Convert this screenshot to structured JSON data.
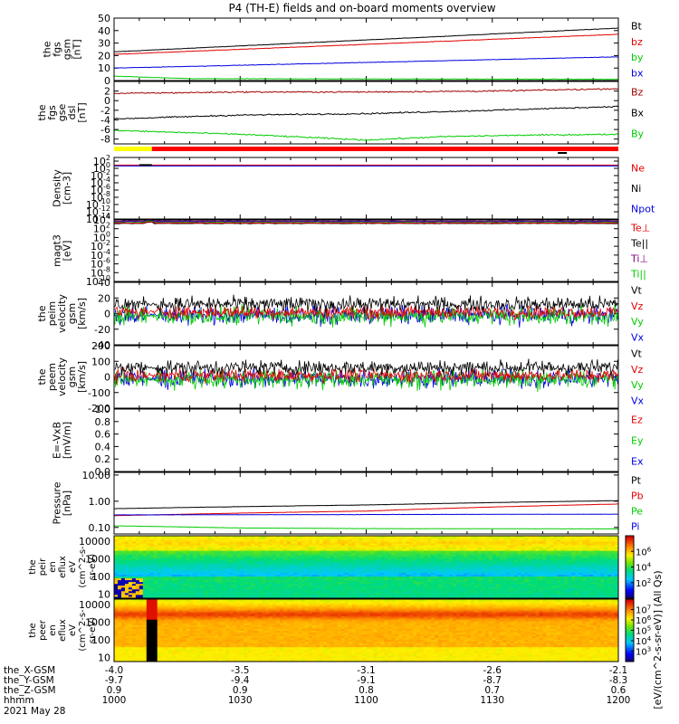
{
  "title": "P4 (TH-E) fields and on-board moments overview",
  "colors": {
    "black": "#000000",
    "red": "#e00000",
    "green": "#00cc00",
    "blue": "#0000e0",
    "darkred": "#a00000",
    "purple": "#800080"
  },
  "chart_data": [
    {
      "type": "line",
      "id": "fgs-gsm",
      "ylabel": [
        "the",
        "fgs",
        "gsm",
        "[nT]"
      ],
      "ylim": [
        0,
        50
      ],
      "yticks": [
        0,
        10,
        20,
        30,
        40,
        50
      ],
      "series": [
        {
          "name": "Bt",
          "color": "#000000",
          "x": [
            1000,
            1200
          ],
          "y": [
            23,
            42
          ]
        },
        {
          "name": "bz",
          "color": "#e00000",
          "x": [
            1000,
            1200
          ],
          "y": [
            21,
            37
          ]
        },
        {
          "name": "by",
          "color": "#00cc00",
          "x": [
            1000,
            1030,
            1200
          ],
          "y": [
            3.5,
            1.5,
            1
          ]
        },
        {
          "name": "bx",
          "color": "#0000e0",
          "x": [
            1000,
            1200
          ],
          "y": [
            10,
            19
          ]
        }
      ]
    },
    {
      "type": "line",
      "id": "fgs-gse",
      "ylabel": [
        "the",
        "fgs",
        "gse",
        "dsl",
        "[nT]"
      ],
      "ylim": [
        -9,
        4
      ],
      "yticks": [
        -8,
        -6,
        -4,
        -2,
        0,
        2
      ],
      "series": [
        {
          "name": "Bz",
          "color": "#a00000",
          "x": [
            1000,
            1050,
            1100,
            1150,
            1200
          ],
          "y": [
            1.5,
            1.8,
            1.8,
            2.0,
            2.5
          ]
        },
        {
          "name": "Bx",
          "color": "#000000",
          "x": [
            1000,
            1050,
            1100,
            1150,
            1200
          ],
          "y": [
            -3.8,
            -3.0,
            -2.7,
            -2.0,
            -1.2
          ]
        },
        {
          "name": "By",
          "color": "#00cc00",
          "x": [
            1000,
            1050,
            1100,
            1130,
            1160,
            1200
          ],
          "y": [
            -6.2,
            -7.0,
            -8.2,
            -7.5,
            -7.2,
            -7.0
          ]
        }
      ]
    },
    {
      "type": "line",
      "id": "density",
      "ylabel": [
        "Density",
        "[cm-3]"
      ],
      "ylim": [
        -14,
        3
      ],
      "log": true,
      "yticks": [
        {
          "exp": "2"
        },
        {
          "exp": "0"
        },
        {
          "exp": "-2"
        },
        {
          "exp": "-4"
        },
        {
          "exp": "-6"
        },
        {
          "exp": "-8"
        },
        {
          "exp": "-10"
        },
        {
          "exp": "-12"
        },
        {
          "exp": "-14"
        }
      ],
      "series": [
        {
          "name": "Ne",
          "color": "#e00000"
        },
        {
          "name": "Ni",
          "color": "#000000"
        },
        {
          "name": "Npot",
          "color": "#0000e0"
        }
      ]
    },
    {
      "type": "line",
      "id": "temperature",
      "ylabel": [
        "magt3",
        "[eV]"
      ],
      "ylim": [
        -10,
        4
      ],
      "log": true,
      "yticks": [
        {
          "exp": "4"
        },
        {
          "exp": "2"
        },
        {
          "exp": "0"
        },
        {
          "exp": "-2"
        },
        {
          "exp": "-4"
        },
        {
          "exp": "-6"
        },
        {
          "exp": "-8"
        },
        {
          "exp": "-10"
        }
      ],
      "series": [
        {
          "name": "Te⊥",
          "color": "#e00000"
        },
        {
          "name": "Te||",
          "color": "#000000"
        },
        {
          "name": "Ti⊥",
          "color": "#800080"
        },
        {
          "name": "Ti||",
          "color": "#00cc00"
        }
      ]
    },
    {
      "type": "line",
      "id": "peim-velocity",
      "ylabel": [
        "the",
        "peim",
        "velocity",
        "gsm",
        "[km/s]"
      ],
      "ylim": [
        -40,
        40
      ],
      "yticks": [
        -40,
        -20,
        0,
        20,
        40
      ],
      "series": [
        {
          "name": "Vt",
          "color": "#000000"
        },
        {
          "name": "Vz",
          "color": "#e00000"
        },
        {
          "name": "Vy",
          "color": "#00cc00"
        },
        {
          "name": "Vx",
          "color": "#0000e0"
        }
      ]
    },
    {
      "type": "line",
      "id": "peem-velocity",
      "ylabel": [
        "the",
        "peem",
        "velocity",
        "gsm",
        "[km/s]"
      ],
      "ylim": [
        -200,
        200
      ],
      "yticks": [
        -200,
        -100,
        0,
        100,
        200
      ],
      "series": [
        {
          "name": "Vt",
          "color": "#000000"
        },
        {
          "name": "Vz",
          "color": "#e00000"
        },
        {
          "name": "Vy",
          "color": "#00cc00"
        },
        {
          "name": "Vx",
          "color": "#0000e0"
        }
      ]
    },
    {
      "type": "line",
      "id": "efield",
      "ylabel": [
        "E=-VxB",
        "[mV/m]"
      ],
      "ylim": [
        0,
        1
      ],
      "yticks": [
        "0.0",
        "0.2",
        "0.4",
        "0.6",
        "0.8",
        "1.0"
      ],
      "series": [
        {
          "name": "Ez",
          "color": "#e00000"
        },
        {
          "name": "Ey",
          "color": "#00cc00"
        },
        {
          "name": "Ex",
          "color": "#0000e0"
        }
      ]
    },
    {
      "type": "line",
      "id": "pressure",
      "ylabel": [
        "Pressure",
        "[nPa]"
      ],
      "ylim": [
        -1.25,
        1.1
      ],
      "log": true,
      "yticks": [
        "0.10",
        "1.00",
        "10.00"
      ],
      "series": [
        {
          "name": "Pt",
          "color": "#000000",
          "x": [
            1000,
            1100,
            1200
          ],
          "y": [
            0.52,
            0.72,
            1.05
          ]
        },
        {
          "name": "Pb",
          "color": "#e00000",
          "x": [
            1000,
            1100,
            1200
          ],
          "y": [
            0.28,
            0.42,
            0.78
          ]
        },
        {
          "name": "Pe",
          "color": "#00cc00",
          "x": [
            1000,
            1050,
            1100,
            1200
          ],
          "y": [
            0.115,
            0.095,
            0.09,
            0.088
          ]
        },
        {
          "name": "Pi",
          "color": "#0000e0",
          "x": [
            1000,
            1200
          ],
          "y": [
            0.3,
            0.32
          ]
        }
      ]
    },
    {
      "type": "heatmap",
      "id": "peir-en",
      "ylabel": [
        "the",
        "peir",
        "en",
        "eflux",
        "eV",
        "(cm^2-s-",
        "sr-eV)"
      ],
      "ylim": [
        0.78,
        4.3
      ],
      "log": true,
      "yticks": [
        "10",
        "100",
        "1000",
        "10000"
      ],
      "colorbar": {
        "ticks": [
          {
            "exp": "2"
          },
          {
            "exp": "4"
          },
          {
            "exp": "6"
          }
        ]
      }
    },
    {
      "type": "heatmap",
      "id": "peer-en",
      "ylabel": [
        "the",
        "peer",
        "en",
        "eflux",
        "eV",
        "(cm^2-s-",
        "sr-eV)"
      ],
      "ylim": [
        0.78,
        4.3
      ],
      "log": true,
      "yticks": [
        "10",
        "100",
        "1000",
        "10000"
      ],
      "colorbar": {
        "ticks": [
          {
            "exp": "3"
          },
          {
            "exp": "4"
          },
          {
            "exp": "5"
          },
          {
            "exp": "6"
          },
          {
            "exp": "7"
          }
        ]
      }
    }
  ],
  "colorbar_label": "[eV/(cm^2-s-sr-eV)] (All Qs)",
  "xaxis": {
    "rows": [
      {
        "label": "the_X-GSM",
        "values": [
          "-4.0",
          "-3.5",
          "-3.1",
          "-2.6",
          "-2.1"
        ]
      },
      {
        "label": "the_Y-GSM",
        "values": [
          "-9.7",
          "-9.4",
          "-9.1",
          "-8.7",
          "-8.3"
        ]
      },
      {
        "label": "the_Z-GSM",
        "values": [
          "0.9",
          "0.9",
          "0.8",
          "0.7",
          "0.6"
        ]
      },
      {
        "label": "hhmm",
        "values": [
          "1000",
          "1030",
          "1100",
          "1130",
          "1200"
        ]
      }
    ],
    "date": "2021 May 28"
  }
}
